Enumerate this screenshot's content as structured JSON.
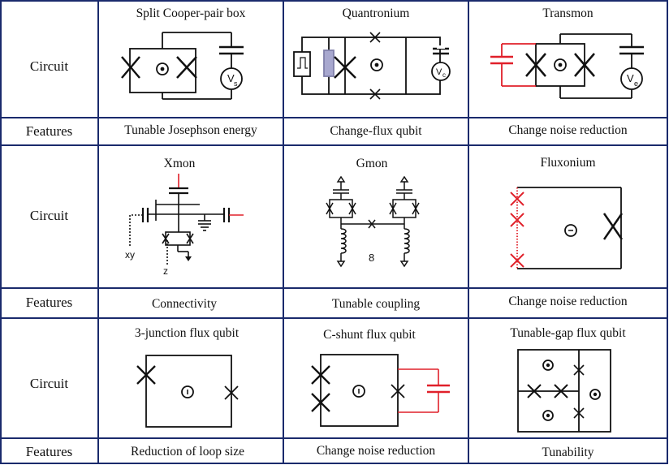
{
  "colors": {
    "grid": "#1a2a6c",
    "wire": "#111111",
    "highlight": "#e0202a",
    "resonator": "#a8a8cf"
  },
  "row_labels": {
    "circuit": "Circuit",
    "features": "Features"
  },
  "rows": [
    {
      "cells": [
        {
          "title": "Split Cooper-pair box",
          "feature": "Tunable Josephson energy",
          "source_label": "s"
        },
        {
          "title": "Quantronium",
          "feature": "Change-flux qubit",
          "source_label": "c"
        },
        {
          "title": "Transmon",
          "feature": "Change noise reduction",
          "source_label": "e"
        }
      ]
    },
    {
      "cells": [
        {
          "title": "Xmon",
          "feature": "Connectivity",
          "line_labels": [
            "xy",
            "z"
          ]
        },
        {
          "title": "Gmon",
          "feature": "Tunable coupling",
          "center_label": "8"
        },
        {
          "title": "Fluxonium",
          "feature": "Change noise reduction"
        }
      ]
    },
    {
      "cells": [
        {
          "title": "3-junction flux qubit",
          "feature": "Reduction of loop size"
        },
        {
          "title": "C-shunt flux qubit",
          "feature": "Change noise reduction"
        },
        {
          "title": "Tunable-gap flux qubit",
          "feature": "Tunability"
        }
      ]
    }
  ]
}
